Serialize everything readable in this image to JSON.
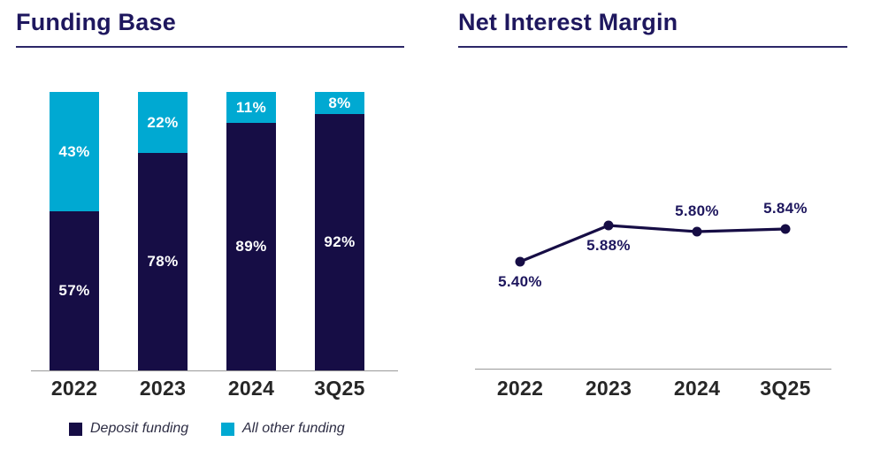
{
  "colors": {
    "navy": "#160d45",
    "cyan": "#00a9d2",
    "title_navy": "#1e175e",
    "underline_navy": "#2c2768",
    "axis_gray": "#9a9a9a",
    "tick_dark": "#262626",
    "bar_label_white": "#ffffff"
  },
  "chart_data": [
    {
      "type": "bar",
      "variant": "stacked-100-percent",
      "title": "Funding Base",
      "categories": [
        "2022",
        "2023",
        "2024",
        "3Q25"
      ],
      "series": [
        {
          "name": "Deposit funding",
          "color": "#160d45",
          "values": [
            57,
            78,
            89,
            92
          ],
          "labels": [
            "57%",
            "78%",
            "89%",
            "92%"
          ]
        },
        {
          "name": "All other funding",
          "color": "#00a9d2",
          "values": [
            43,
            22,
            11,
            8
          ],
          "labels": [
            "43%",
            "22%",
            "11%",
            "8%"
          ]
        }
      ],
      "ylim": [
        0,
        100
      ],
      "grid": false,
      "legend_position": "bottom"
    },
    {
      "type": "line",
      "title": "Net Interest Margin",
      "categories": [
        "2022",
        "2023",
        "2024",
        "3Q25"
      ],
      "values": [
        5.4,
        5.88,
        5.8,
        5.84
      ],
      "labels": [
        "5.40%",
        "5.88%",
        "5.80%",
        "5.84%"
      ],
      "label_side": [
        "below",
        "below",
        "above",
        "above"
      ],
      "line_color": "#160d45",
      "marker": "circle",
      "grid": false,
      "legend_position": "none"
    }
  ]
}
